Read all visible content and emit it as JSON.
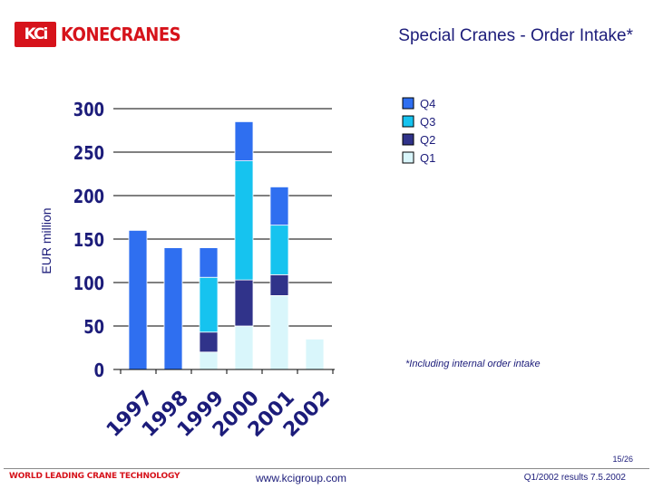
{
  "header": {
    "logo_mark": "KCi",
    "logo_text": "KONECRANES",
    "title": "Special Cranes - Order Intake*"
  },
  "footer": {
    "tagline": "WORLD LEADING CRANE TECHNOLOGY",
    "website": "www.kcigroup.com",
    "meta": "Q1/2002 results 7.5.2002",
    "page": "15/26"
  },
  "colors": {
    "brand_red": "#d6131b",
    "title_navy": "#1c1c7a",
    "q1": "#d9f6fb",
    "q2": "#30338a",
    "q3": "#16c3ef",
    "q4": "#2f6ff0"
  },
  "chart_data": {
    "type": "bar",
    "stacked": true,
    "title": "Special Cranes - Order Intake*",
    "xlabel": "",
    "ylabel": "EUR million",
    "ylim": [
      0,
      300
    ],
    "yticks": [
      0,
      50,
      100,
      150,
      200,
      250,
      300
    ],
    "grid": true,
    "legend_position": "top-right",
    "annotation": "*Including internal order intake",
    "categories": [
      "1997",
      "1998",
      "1999",
      "2000",
      "2001",
      "2002"
    ],
    "series": [
      {
        "name": "Q1",
        "color": "#d9f6fb",
        "values": [
          null,
          null,
          20,
          50,
          85,
          35
        ]
      },
      {
        "name": "Q2",
        "color": "#30338a",
        "values": [
          null,
          null,
          23,
          53,
          24,
          null
        ]
      },
      {
        "name": "Q3",
        "color": "#16c3ef",
        "values": [
          null,
          null,
          63,
          137,
          57,
          null
        ]
      },
      {
        "name": "Q4",
        "color": "#2f6ff0",
        "values": [
          160,
          140,
          34,
          45,
          44,
          null
        ]
      }
    ]
  }
}
